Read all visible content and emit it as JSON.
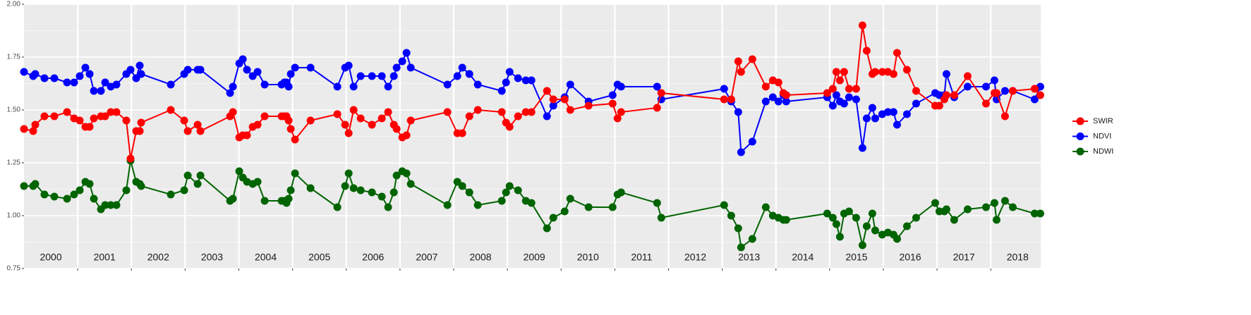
{
  "chart_data": {
    "type": "line",
    "x": [
      2000.0,
      2000.171,
      2000.21,
      2000.381,
      2000.565,
      2000.802,
      2000.933,
      2001.038,
      2001.143,
      2001.222,
      2001.301,
      2001.432,
      2001.511,
      2001.616,
      2001.721,
      2001.905,
      2001.984,
      2002.089,
      2002.155,
      2002.181,
      2002.733,
      2002.983,
      2003.049,
      2003.233,
      2003.285,
      2003.837,
      2003.89,
      2004.008,
      2004.074,
      2004.152,
      2004.258,
      2004.349,
      2004.481,
      2004.796,
      2004.849,
      2004.888,
      2004.928,
      2004.967,
      2005.046,
      2005.335,
      2005.834,
      2005.979,
      2006.045,
      2006.137,
      2006.268,
      2006.478,
      2006.662,
      2006.78,
      2006.886,
      2006.938,
      2007.043,
      2007.122,
      2007.201,
      2007.884,
      2008.068,
      2008.16,
      2008.292,
      2008.449,
      2008.896,
      2008.975,
      2009.041,
      2009.198,
      2009.343,
      2009.448,
      2009.737,
      2009.855,
      2010.066,
      2010.171,
      2010.512,
      2010.959,
      2011.051,
      2011.117,
      2011.787,
      2011.866,
      2013.035,
      2013.167,
      2013.298,
      2013.351,
      2013.561,
      2013.811,
      2013.942,
      2014.047,
      2014.139,
      2014.192,
      2014.954,
      2015.059,
      2015.125,
      2015.191,
      2015.269,
      2015.361,
      2015.493,
      2015.611,
      2015.69,
      2015.795,
      2015.848,
      2015.979,
      2016.084,
      2016.189,
      2016.255,
      2016.439,
      2016.61,
      2016.965,
      2017.043,
      2017.135,
      2017.175,
      2017.319,
      2017.569,
      2017.911,
      2018.068,
      2018.108,
      2018.265,
      2018.41,
      2018.817,
      2018.922
    ],
    "series": [
      {
        "name": "SWIR",
        "color": "#ff0000",
        "values": [
          1.41,
          1.4,
          1.43,
          1.47,
          1.47,
          1.49,
          1.46,
          1.45,
          1.42,
          1.42,
          1.46,
          1.47,
          1.47,
          1.49,
          1.49,
          1.45,
          1.27,
          1.4,
          1.4,
          1.44,
          1.5,
          1.45,
          1.4,
          1.43,
          1.4,
          1.47,
          1.49,
          1.37,
          1.38,
          1.38,
          1.42,
          1.43,
          1.47,
          1.47,
          1.47,
          1.47,
          1.45,
          1.41,
          1.36,
          1.45,
          1.48,
          1.43,
          1.39,
          1.5,
          1.46,
          1.43,
          1.46,
          1.49,
          1.43,
          1.41,
          1.37,
          1.38,
          1.45,
          1.49,
          1.39,
          1.39,
          1.47,
          1.5,
          1.49,
          1.44,
          1.42,
          1.47,
          1.49,
          1.49,
          1.59,
          1.55,
          1.55,
          1.5,
          1.52,
          1.53,
          1.46,
          1.49,
          1.51,
          1.58,
          1.55,
          1.55,
          1.73,
          1.68,
          1.74,
          1.61,
          1.64,
          1.63,
          1.58,
          1.57,
          1.58,
          1.6,
          1.68,
          1.64,
          1.68,
          1.6,
          1.6,
          1.9,
          1.78,
          1.67,
          1.68,
          1.68,
          1.68,
          1.67,
          1.77,
          1.69,
          1.59,
          1.52,
          1.52,
          1.55,
          1.57,
          1.57,
          1.66,
          1.53,
          1.58,
          1.58,
          1.47,
          1.59,
          1.6,
          1.57
        ]
      },
      {
        "name": "NDVI",
        "color": "#0000ff",
        "values": [
          1.68,
          1.66,
          1.67,
          1.65,
          1.65,
          1.63,
          1.63,
          1.66,
          1.7,
          1.67,
          1.59,
          1.59,
          1.63,
          1.61,
          1.62,
          1.67,
          1.69,
          1.65,
          1.71,
          1.67,
          1.62,
          1.67,
          1.69,
          1.69,
          1.69,
          1.58,
          1.61,
          1.72,
          1.74,
          1.69,
          1.66,
          1.68,
          1.62,
          1.62,
          1.63,
          1.63,
          1.61,
          1.67,
          1.7,
          1.7,
          1.61,
          1.7,
          1.71,
          1.61,
          1.66,
          1.66,
          1.66,
          1.61,
          1.66,
          1.7,
          1.73,
          1.77,
          1.7,
          1.62,
          1.66,
          1.7,
          1.67,
          1.62,
          1.59,
          1.63,
          1.68,
          1.65,
          1.64,
          1.64,
          1.47,
          1.52,
          1.56,
          1.62,
          1.54,
          1.57,
          1.62,
          1.61,
          1.61,
          1.55,
          1.6,
          1.54,
          1.49,
          1.3,
          1.35,
          1.54,
          1.56,
          1.54,
          1.57,
          1.54,
          1.56,
          1.52,
          1.57,
          1.54,
          1.53,
          1.56,
          1.55,
          1.32,
          1.46,
          1.51,
          1.46,
          1.48,
          1.49,
          1.49,
          1.43,
          1.48,
          1.53,
          1.58,
          1.57,
          1.57,
          1.67,
          1.56,
          1.61,
          1.61,
          1.64,
          1.55,
          1.59,
          1.59,
          1.55,
          1.61
        ]
      },
      {
        "name": "NDWI",
        "color": "#006400",
        "values": [
          1.14,
          1.14,
          1.15,
          1.1,
          1.09,
          1.08,
          1.1,
          1.12,
          1.16,
          1.15,
          1.08,
          1.03,
          1.05,
          1.05,
          1.05,
          1.12,
          1.26,
          1.16,
          1.15,
          1.14,
          1.1,
          1.12,
          1.19,
          1.15,
          1.19,
          1.07,
          1.08,
          1.21,
          1.18,
          1.16,
          1.15,
          1.16,
          1.07,
          1.07,
          1.07,
          1.06,
          1.08,
          1.12,
          1.2,
          1.13,
          1.04,
          1.14,
          1.2,
          1.13,
          1.12,
          1.11,
          1.09,
          1.04,
          1.11,
          1.19,
          1.21,
          1.2,
          1.15,
          1.05,
          1.16,
          1.14,
          1.11,
          1.05,
          1.07,
          1.11,
          1.14,
          1.12,
          1.07,
          1.06,
          0.94,
          0.99,
          1.02,
          1.08,
          1.04,
          1.04,
          1.1,
          1.11,
          1.06,
          0.99,
          1.05,
          1.0,
          0.94,
          0.85,
          0.89,
          1.04,
          1.0,
          0.99,
          0.98,
          0.98,
          1.01,
          0.99,
          0.96,
          0.9,
          1.01,
          1.02,
          0.99,
          0.86,
          0.95,
          1.01,
          0.93,
          0.91,
          0.92,
          0.91,
          0.89,
          0.95,
          0.99,
          1.06,
          1.02,
          1.02,
          1.03,
          0.98,
          1.03,
          1.04,
          1.06,
          0.98,
          1.07,
          1.04,
          1.01,
          1.01
        ]
      }
    ],
    "xlim": [
      2000.0,
      2018.93
    ],
    "xticks": [
      2001,
      2002,
      2003,
      2004,
      2005,
      2006,
      2007,
      2008,
      2009,
      2010,
      2011,
      2012,
      2013,
      2014,
      2015,
      2016,
      2017,
      2018
    ],
    "year_labels": [
      {
        "value": 2000.5,
        "label": "2000"
      },
      {
        "value": 2001.5,
        "label": "2001"
      },
      {
        "value": 2002.5,
        "label": "2002"
      },
      {
        "value": 2003.5,
        "label": "2003"
      },
      {
        "value": 2004.5,
        "label": "2004"
      },
      {
        "value": 2005.5,
        "label": "2005"
      },
      {
        "value": 2006.5,
        "label": "2006"
      },
      {
        "value": 2007.5,
        "label": "2007"
      },
      {
        "value": 2008.5,
        "label": "2008"
      },
      {
        "value": 2009.5,
        "label": "2009"
      },
      {
        "value": 2010.5,
        "label": "2010"
      },
      {
        "value": 2011.5,
        "label": "2011"
      },
      {
        "value": 2012.5,
        "label": "2012"
      },
      {
        "value": 2013.5,
        "label": "2013"
      },
      {
        "value": 2014.5,
        "label": "2014"
      },
      {
        "value": 2015.5,
        "label": "2015"
      },
      {
        "value": 2016.5,
        "label": "2016"
      },
      {
        "value": 2017.5,
        "label": "2017"
      },
      {
        "value": 2018.5,
        "label": "2018"
      }
    ],
    "ylim": [
      0.75,
      2.0
    ],
    "yticks": [
      0.75,
      {
        "value": 1,
        "label": "1.00"
      },
      1.25,
      {
        "value": 1.5,
        "label": "1.50"
      },
      1.75,
      {
        "value": 2,
        "label": "2.00"
      }
    ],
    "grid": true,
    "legend": "right"
  }
}
